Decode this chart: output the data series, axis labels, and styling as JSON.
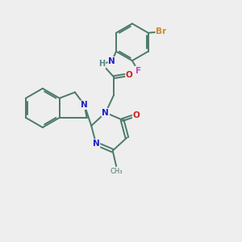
{
  "bg_color": "#eeeeee",
  "bond_color": "#4a7a6a",
  "n_color": "#2020cc",
  "o_color": "#cc2020",
  "f_color": "#cc44cc",
  "br_color": "#cc8833",
  "h_color": "#558888",
  "line_width": 1.4,
  "figsize": [
    3.0,
    3.0
  ],
  "dpi": 100,
  "xlim": [
    0,
    10
  ],
  "ylim": [
    0,
    10
  ]
}
